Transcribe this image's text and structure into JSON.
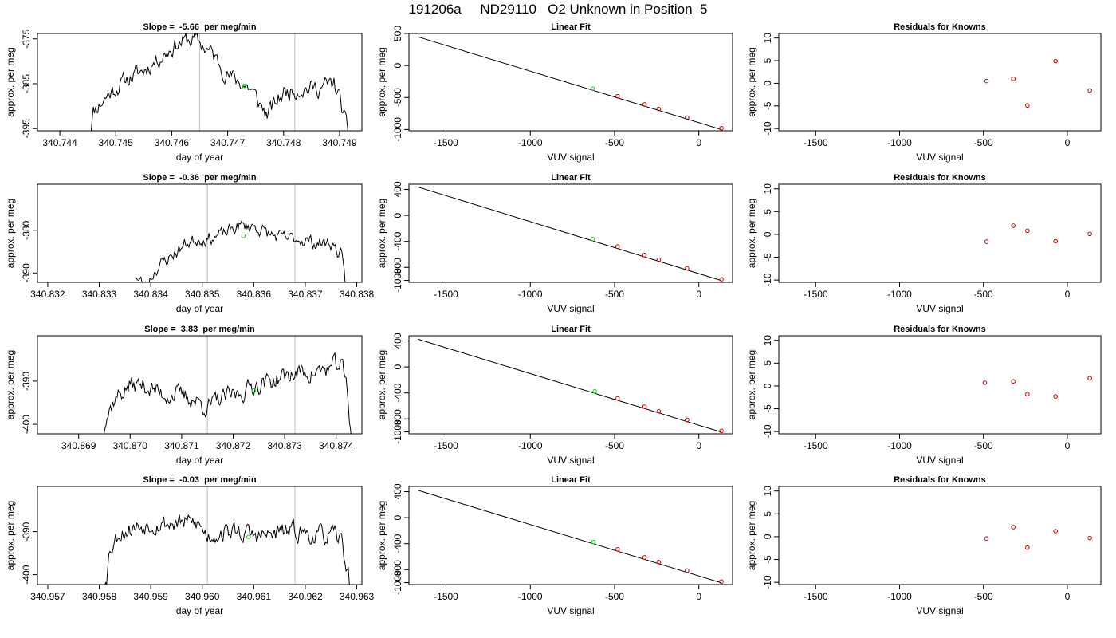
{
  "header": {
    "title": "191206a     ND29110   O2 Unknown in Position  5"
  },
  "colors": {
    "line": "#000000",
    "known_marker": "#cc0000",
    "unknown_marker": "#00dd00",
    "vline": "#c8c8c8"
  },
  "chart_data": [
    {
      "row": 1,
      "type": "line",
      "title": "Slope =  -5.66  per meg/min",
      "xlabel": "day of year",
      "ylabel": "approx. per meg",
      "xlim": [
        340.7436,
        340.7494
      ],
      "ylim": [
        -395.5,
        -373.8
      ],
      "xticks": [
        340.744,
        340.745,
        340.746,
        340.747,
        340.748,
        340.749
      ],
      "xtick_labels": [
        "340.744",
        "340.745",
        "340.746",
        "340.747",
        "340.748",
        "340.749"
      ],
      "yticks": [
        -395,
        -385,
        -375
      ],
      "ytick_labels": [
        "-395",
        "-385",
        "-375"
      ],
      "vlines": [
        340.7465,
        340.7482
      ],
      "x_start": 340.7445,
      "x_end": 340.7492,
      "profile": [
        [
          340.7445,
          -398
        ],
        [
          340.7446,
          -391
        ],
        [
          340.7449,
          -387
        ],
        [
          340.7452,
          -384
        ],
        [
          340.7455,
          -382
        ],
        [
          340.7458,
          -379
        ],
        [
          340.7461,
          -376
        ],
        [
          340.7464,
          -375
        ],
        [
          340.7467,
          -378
        ],
        [
          340.747,
          -383
        ],
        [
          340.7474,
          -386
        ],
        [
          340.7477,
          -392
        ],
        [
          340.748,
          -387
        ],
        [
          340.7483,
          -386
        ],
        [
          340.7486,
          -386
        ],
        [
          340.7489,
          -385
        ],
        [
          340.749,
          -388
        ],
        [
          340.7492,
          -399
        ]
      ],
      "noise": 1.6,
      "seed": 11,
      "marker": {
        "x": 340.7473,
        "y": -385.5
      }
    },
    {
      "row": 1,
      "type": "scatter",
      "title": "Linear Fit",
      "xlabel": "VUV signal",
      "ylabel": "approx. per meg",
      "xlim": [
        -1720,
        200
      ],
      "ylim": [
        -1020,
        500
      ],
      "xticks": [
        -1500,
        -1000,
        -500,
        0
      ],
      "xtick_labels": [
        "-1500",
        "-1000",
        "-500",
        "0"
      ],
      "yticks": [
        -1000,
        -500,
        0,
        500
      ],
      "ytick_labels": [
        "-1000",
        "-500",
        "0",
        "500"
      ],
      "fit_line": [
        [
          -1665,
          446
        ],
        [
          130,
          -998
        ]
      ],
      "known_points": [
        [
          -482,
          -480
        ],
        [
          -322,
          -608
        ],
        [
          -238,
          -678
        ],
        [
          -70,
          -813
        ],
        [
          134,
          -979
        ]
      ],
      "unknown_point": [
        -630,
        -362
      ]
    },
    {
      "row": 1,
      "type": "scatter",
      "title": "Residuals for Knowns",
      "xlabel": "VUV signal",
      "ylabel": "approx. per meg",
      "xlim": [
        -1720,
        200
      ],
      "ylim": [
        -10.5,
        11
      ],
      "xticks": [
        -1500,
        -1000,
        -500,
        0
      ],
      "xtick_labels": [
        "-1500",
        "-1000",
        "-500",
        "0"
      ],
      "yticks": [
        -10,
        -5,
        0,
        5,
        10
      ],
      "ytick_labels": [
        "-10",
        "-5",
        "0",
        "5",
        "10"
      ],
      "points": [
        [
          -482,
          0.5
        ],
        [
          -322,
          1.0
        ],
        [
          -238,
          -4.9
        ],
        [
          -70,
          4.9
        ],
        [
          134,
          -1.6
        ]
      ]
    },
    {
      "row": 2,
      "type": "line",
      "title": "Slope =  -0.36  per meg/min",
      "xlabel": "day of year",
      "ylabel": "approx. per meg",
      "xlim": [
        340.8318,
        340.8381
      ],
      "ylim": [
        -392.2,
        -369.2
      ],
      "xticks": [
        340.832,
        340.833,
        340.834,
        340.835,
        340.836,
        340.837,
        340.838
      ],
      "xtick_labels": [
        "340.832",
        "340.833",
        "340.834",
        "340.835",
        "340.836",
        "340.837",
        "340.838"
      ],
      "yticks": [
        -390,
        -380
      ],
      "ytick_labels": [
        "-390",
        "-380"
      ],
      "vlines": [
        340.8351,
        340.8368
      ],
      "x_start": 340.8337,
      "x_end": 340.8378,
      "profile": [
        [
          340.8337,
          -391
        ],
        [
          340.8339,
          -393
        ],
        [
          340.8341,
          -389
        ],
        [
          340.8343,
          -387
        ],
        [
          340.8345,
          -385
        ],
        [
          340.8347,
          -383
        ],
        [
          340.8349,
          -382
        ],
        [
          340.8351,
          -382
        ],
        [
          340.8354,
          -381
        ],
        [
          340.8357,
          -379
        ],
        [
          340.836,
          -379
        ],
        [
          340.8363,
          -381
        ],
        [
          340.8366,
          -382
        ],
        [
          340.8369,
          -382
        ],
        [
          340.8372,
          -383
        ],
        [
          340.8375,
          -383
        ],
        [
          340.8377,
          -386
        ],
        [
          340.8378,
          -395
        ]
      ],
      "noise": 1.3,
      "seed": 23,
      "marker": {
        "x": 340.8358,
        "y": -381.3
      }
    },
    {
      "row": 2,
      "type": "scatter",
      "title": "Linear Fit",
      "xlabel": "VUV signal",
      "ylabel": "approx. per meg",
      "xlim": [
        -1720,
        200
      ],
      "ylim": [
        -1030,
        480
      ],
      "xticks": [
        -1500,
        -1000,
        -500,
        0
      ],
      "xtick_labels": [
        "-1500",
        "-1000",
        "-500",
        "0"
      ],
      "yticks": [
        -1000,
        -800,
        -400,
        0,
        400
      ],
      "ytick_labels": [
        "-1000",
        "-800",
        "-400",
        "0",
        "400"
      ],
      "fit_line": [
        [
          -1665,
          436
        ],
        [
          130,
          -1000
        ]
      ],
      "known_points": [
        [
          -482,
          -480
        ],
        [
          -322,
          -610
        ],
        [
          -238,
          -680
        ],
        [
          -70,
          -815
        ],
        [
          134,
          -983
        ]
      ],
      "unknown_point": [
        -630,
        -365
      ]
    },
    {
      "row": 2,
      "type": "scatter",
      "title": "Residuals for Knowns",
      "xlabel": "VUV signal",
      "ylabel": "approx. per meg",
      "xlim": [
        -1720,
        200
      ],
      "ylim": [
        -10.5,
        11
      ],
      "xticks": [
        -1500,
        -1000,
        -500,
        0
      ],
      "xtick_labels": [
        "-1500",
        "-1000",
        "-500",
        "0"
      ],
      "yticks": [
        -10,
        -5,
        0,
        5,
        10
      ],
      "ytick_labels": [
        "-10",
        "-5",
        "0",
        "5",
        "10"
      ],
      "points": [
        [
          -482,
          -1.6
        ],
        [
          -322,
          1.9
        ],
        [
          -238,
          0.8
        ],
        [
          -70,
          -1.5
        ],
        [
          134,
          0.1
        ]
      ]
    },
    {
      "row": 3,
      "type": "line",
      "title": "Slope =  3.83  per meg/min",
      "xlabel": "day of year",
      "ylabel": "approx. per meg",
      "xlim": [
        340.8682,
        340.8745
      ],
      "ylim": [
        -402.2,
        -379.5
      ],
      "xticks": [
        340.869,
        340.87,
        340.871,
        340.872,
        340.873,
        340.874
      ],
      "xtick_labels": [
        "340.869",
        "340.870",
        "340.871",
        "340.872",
        "340.873",
        "340.874"
      ],
      "yticks": [
        -400,
        -390
      ],
      "ytick_labels": [
        "-400",
        "-390"
      ],
      "vlines": [
        340.8715,
        340.8732
      ],
      "x_start": 340.8694,
      "x_end": 340.8743,
      "profile": [
        [
          340.8694,
          -404
        ],
        [
          340.8695,
          -399
        ],
        [
          340.8697,
          -394
        ],
        [
          340.87,
          -391
        ],
        [
          340.8703,
          -391
        ],
        [
          340.8706,
          -393
        ],
        [
          340.8709,
          -393
        ],
        [
          340.8712,
          -394
        ],
        [
          340.8715,
          -396
        ],
        [
          340.8718,
          -394
        ],
        [
          340.8721,
          -393
        ],
        [
          340.8724,
          -391
        ],
        [
          340.8727,
          -390
        ],
        [
          340.873,
          -389
        ],
        [
          340.8733,
          -388
        ],
        [
          340.8736,
          -388
        ],
        [
          340.8739,
          -387
        ],
        [
          340.8741,
          -386
        ],
        [
          340.8742,
          -391
        ],
        [
          340.8743,
          -404
        ]
      ],
      "noise": 1.8,
      "seed": 37,
      "marker": {
        "x": 340.8724,
        "y": -392.2
      }
    },
    {
      "row": 3,
      "type": "scatter",
      "title": "Linear Fit",
      "xlabel": "VUV signal",
      "ylabel": "approx. per meg",
      "xlim": [
        -1720,
        200
      ],
      "ylim": [
        -1030,
        480
      ],
      "xticks": [
        -1500,
        -1000,
        -500,
        0
      ],
      "xtick_labels": [
        "-1500",
        "-1000",
        "-500",
        "0"
      ],
      "yticks": [
        -1000,
        -800,
        -400,
        0,
        400
      ],
      "ytick_labels": [
        "-1000",
        "-800",
        "-400",
        "0",
        "400"
      ],
      "fit_line": [
        [
          -1665,
          426
        ],
        [
          130,
          -1000
        ]
      ],
      "known_points": [
        [
          -482,
          -485
        ],
        [
          -322,
          -612
        ],
        [
          -238,
          -683
        ],
        [
          -70,
          -815
        ],
        [
          134,
          -985
        ]
      ],
      "unknown_point": [
        -618,
        -377
      ]
    },
    {
      "row": 3,
      "type": "scatter",
      "title": "Residuals for Knowns",
      "xlabel": "VUV signal",
      "ylabel": "approx. per meg",
      "xlim": [
        -1720,
        200
      ],
      "ylim": [
        -10.5,
        11
      ],
      "xticks": [
        -1500,
        -1000,
        -500,
        0
      ],
      "xtick_labels": [
        "-1500",
        "-1000",
        "-500",
        "0"
      ],
      "yticks": [
        -10,
        -5,
        0,
        5,
        10
      ],
      "ytick_labels": [
        "-10",
        "-5",
        "0",
        "5",
        "10"
      ],
      "points": [
        [
          -492,
          0.7
        ],
        [
          -322,
          1.0
        ],
        [
          -238,
          -1.8
        ],
        [
          -70,
          -2.3
        ],
        [
          134,
          1.7
        ]
      ]
    },
    {
      "row": 4,
      "type": "line",
      "title": "Slope =  -0.03  per meg/min",
      "xlabel": "day of year",
      "ylabel": "approx. per meg",
      "xlim": [
        340.9568,
        340.9631
      ],
      "ylim": [
        -402.3,
        -379.5
      ],
      "xticks": [
        340.957,
        340.958,
        340.959,
        340.96,
        340.961,
        340.962,
        340.963
      ],
      "xtick_labels": [
        "340.957",
        "340.958",
        "340.959",
        "340.960",
        "340.961",
        "340.962",
        "340.963"
      ],
      "yticks": [
        -400,
        -390
      ],
      "ytick_labels": [
        "-400",
        "-390"
      ],
      "vlines": [
        340.9601,
        340.9618
      ],
      "x_start": 340.9581,
      "x_end": 340.9629,
      "profile": [
        [
          340.9581,
          -404
        ],
        [
          340.9582,
          -394
        ],
        [
          340.9584,
          -390
        ],
        [
          340.9587,
          -389
        ],
        [
          340.959,
          -388
        ],
        [
          340.9593,
          -388
        ],
        [
          340.9596,
          -388
        ],
        [
          340.9599,
          -388
        ],
        [
          340.9601,
          -391
        ],
        [
          340.9604,
          -390
        ],
        [
          340.9607,
          -390
        ],
        [
          340.961,
          -391
        ],
        [
          340.9613,
          -391
        ],
        [
          340.9616,
          -390
        ],
        [
          340.9619,
          -390
        ],
        [
          340.9622,
          -391
        ],
        [
          340.9625,
          -391
        ],
        [
          340.9627,
          -392
        ],
        [
          340.9629,
          -404
        ]
      ],
      "noise": 1.8,
      "seed": 53,
      "marker": {
        "x": 340.9609,
        "y": -391.2
      }
    },
    {
      "row": 4,
      "type": "scatter",
      "title": "Linear Fit",
      "xlabel": "VUV signal",
      "ylabel": "approx. per meg",
      "xlim": [
        -1720,
        200
      ],
      "ylim": [
        -1030,
        480
      ],
      "xticks": [
        -1500,
        -1000,
        -500,
        0
      ],
      "xtick_labels": [
        "-1500",
        "-1000",
        "-500",
        "0"
      ],
      "yticks": [
        -1000,
        -800,
        -400,
        0,
        400
      ],
      "ytick_labels": [
        "-1000",
        "-800",
        "-400",
        "0",
        "400"
      ],
      "fit_line": [
        [
          -1665,
          420
        ],
        [
          130,
          -1000
        ]
      ],
      "known_points": [
        [
          -482,
          -487
        ],
        [
          -322,
          -612
        ],
        [
          -238,
          -683
        ],
        [
          -70,
          -815
        ],
        [
          134,
          -985
        ]
      ],
      "unknown_point": [
        -625,
        -375
      ]
    },
    {
      "row": 4,
      "type": "scatter",
      "title": "Residuals for Knowns",
      "xlabel": "VUV signal",
      "ylabel": "approx. per meg",
      "xlim": [
        -1720,
        200
      ],
      "ylim": [
        -10.5,
        11
      ],
      "xticks": [
        -1500,
        -1000,
        -500,
        0
      ],
      "xtick_labels": [
        "-1500",
        "-1000",
        "-500",
        "0"
      ],
      "yticks": [
        -10,
        -5,
        0,
        5,
        10
      ],
      "ytick_labels": [
        "-10",
        "-5",
        "0",
        "5",
        "10"
      ],
      "points": [
        [
          -482,
          -0.4
        ],
        [
          -322,
          2.1
        ],
        [
          -238,
          -2.4
        ],
        [
          -70,
          1.2
        ],
        [
          134,
          -0.3
        ]
      ]
    }
  ]
}
